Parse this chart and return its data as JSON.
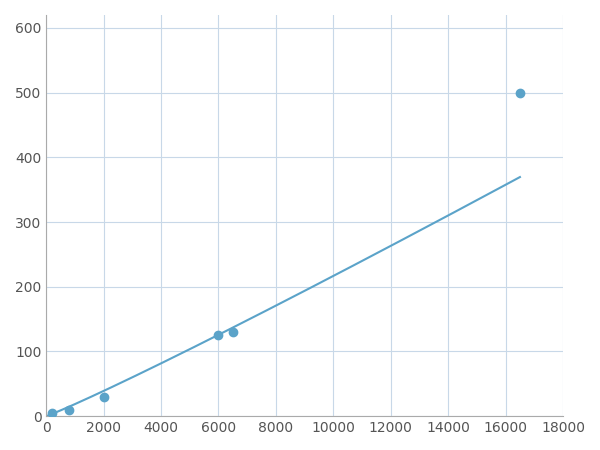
{
  "x_data": [
    200,
    800,
    2000,
    6000,
    6500,
    16500
  ],
  "y_data": [
    5,
    10,
    30,
    125,
    130,
    500
  ],
  "line_color": "#5ba3c9",
  "marker_color": "#5ba3c9",
  "marker_size": 6,
  "xlim": [
    0,
    18000
  ],
  "ylim": [
    0,
    620
  ],
  "xticks": [
    0,
    2000,
    4000,
    6000,
    8000,
    10000,
    12000,
    14000,
    16000,
    18000
  ],
  "yticks": [
    0,
    100,
    200,
    300,
    400,
    500,
    600
  ],
  "grid_color": "#c8d8e8",
  "background_color": "#ffffff",
  "tick_label_color": "#555555",
  "tick_label_size": 10,
  "line_width": 1.5
}
